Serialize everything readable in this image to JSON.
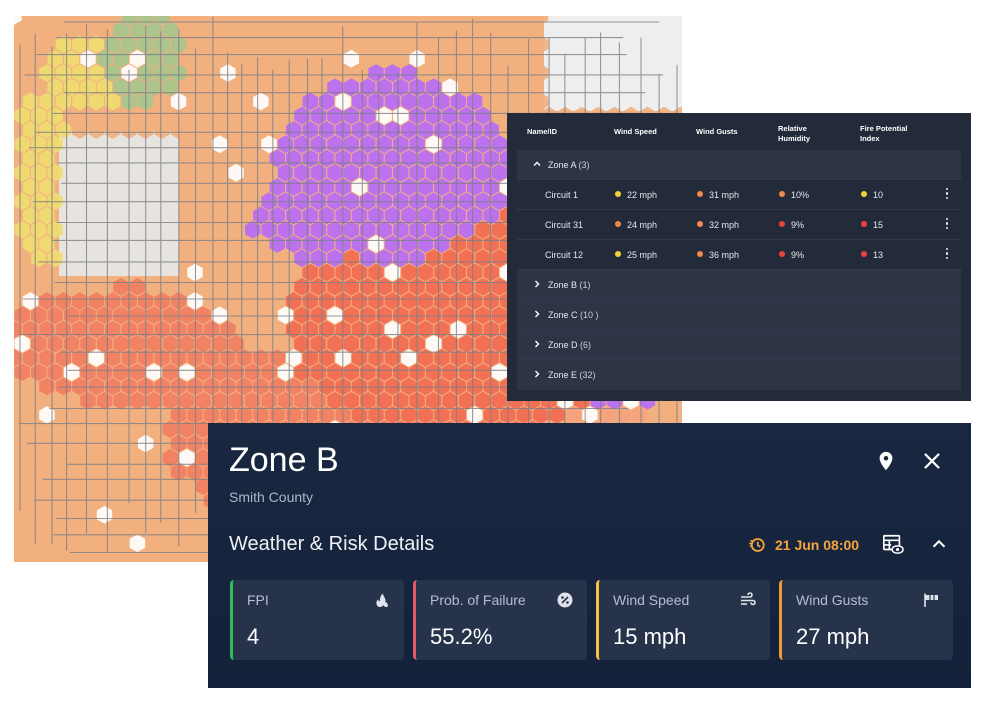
{
  "colors": {
    "green": "#f3d036",
    "yellow": "#f3d036",
    "orange": "#f08a4b",
    "red": "#e8453c",
    "purple": "#b66cf5",
    "fpi_accent": "#2fbf57",
    "pof_accent": "#e25a64",
    "wind_speed_accent": "#f3c43b",
    "wind_gusts_accent": "#f59a2e",
    "timestamp": "#f4a53c"
  },
  "map": {
    "name": "fire-risk-hex-map"
  },
  "table": {
    "headers": {
      "name": "Name/ID",
      "wind_speed": "Wind Speed",
      "wind_gusts": "Wind Gusts",
      "humidity_l1": "Relative",
      "humidity_l2": "Humidity",
      "fpi_l1": "Fire Potential",
      "fpi_l2": "Index"
    },
    "zones": [
      {
        "name": "Zone A",
        "count": "(3)",
        "expanded": true
      },
      {
        "name": "Zone B",
        "count": "(1)",
        "expanded": false
      },
      {
        "name": "Zone C",
        "count": "(10 )",
        "expanded": false
      },
      {
        "name": "Zone D",
        "count": "(6)",
        "expanded": false
      },
      {
        "name": "Zone E",
        "count": "(32)",
        "expanded": false
      }
    ],
    "circuits": [
      {
        "name": "Circuit 1",
        "wind_speed": "22 mph",
        "wind_speed_level": "yellow",
        "wind_gusts": "31 mph",
        "wind_gusts_level": "orange",
        "humidity": "10%",
        "humidity_level": "orange",
        "fpi": "10",
        "fpi_level": "yellow"
      },
      {
        "name": "Circuit 31",
        "wind_speed": "24 mph",
        "wind_speed_level": "orange",
        "wind_gusts": "32 mph",
        "wind_gusts_level": "orange",
        "humidity": "9%",
        "humidity_level": "red",
        "fpi": "15",
        "fpi_level": "red"
      },
      {
        "name": "Circuit 12",
        "wind_speed": "25 mph",
        "wind_speed_level": "yellow",
        "wind_gusts": "36 mph",
        "wind_gusts_level": "orange",
        "humidity": "9%",
        "humidity_level": "red",
        "fpi": "13",
        "fpi_level": "red"
      }
    ]
  },
  "detail": {
    "title": "Zone B",
    "subtitle": "Smith County",
    "section_title": "Weather & Risk Details",
    "timestamp": "21 Jun 08:00",
    "cards": [
      {
        "label": "FPI",
        "value": "4",
        "accent": "#2fbf57",
        "icon": "fire-icon"
      },
      {
        "label": "Prob. of Failure",
        "value": "55.2%",
        "accent": "#e25a64",
        "icon": "percent-icon"
      },
      {
        "label": "Wind Speed",
        "value": "15 mph",
        "accent": "#f3c43b",
        "icon": "wind-icon"
      },
      {
        "label": "Wind Gusts",
        "value": "27 mph",
        "accent": "#f59a2e",
        "icon": "windsock-icon"
      }
    ]
  }
}
